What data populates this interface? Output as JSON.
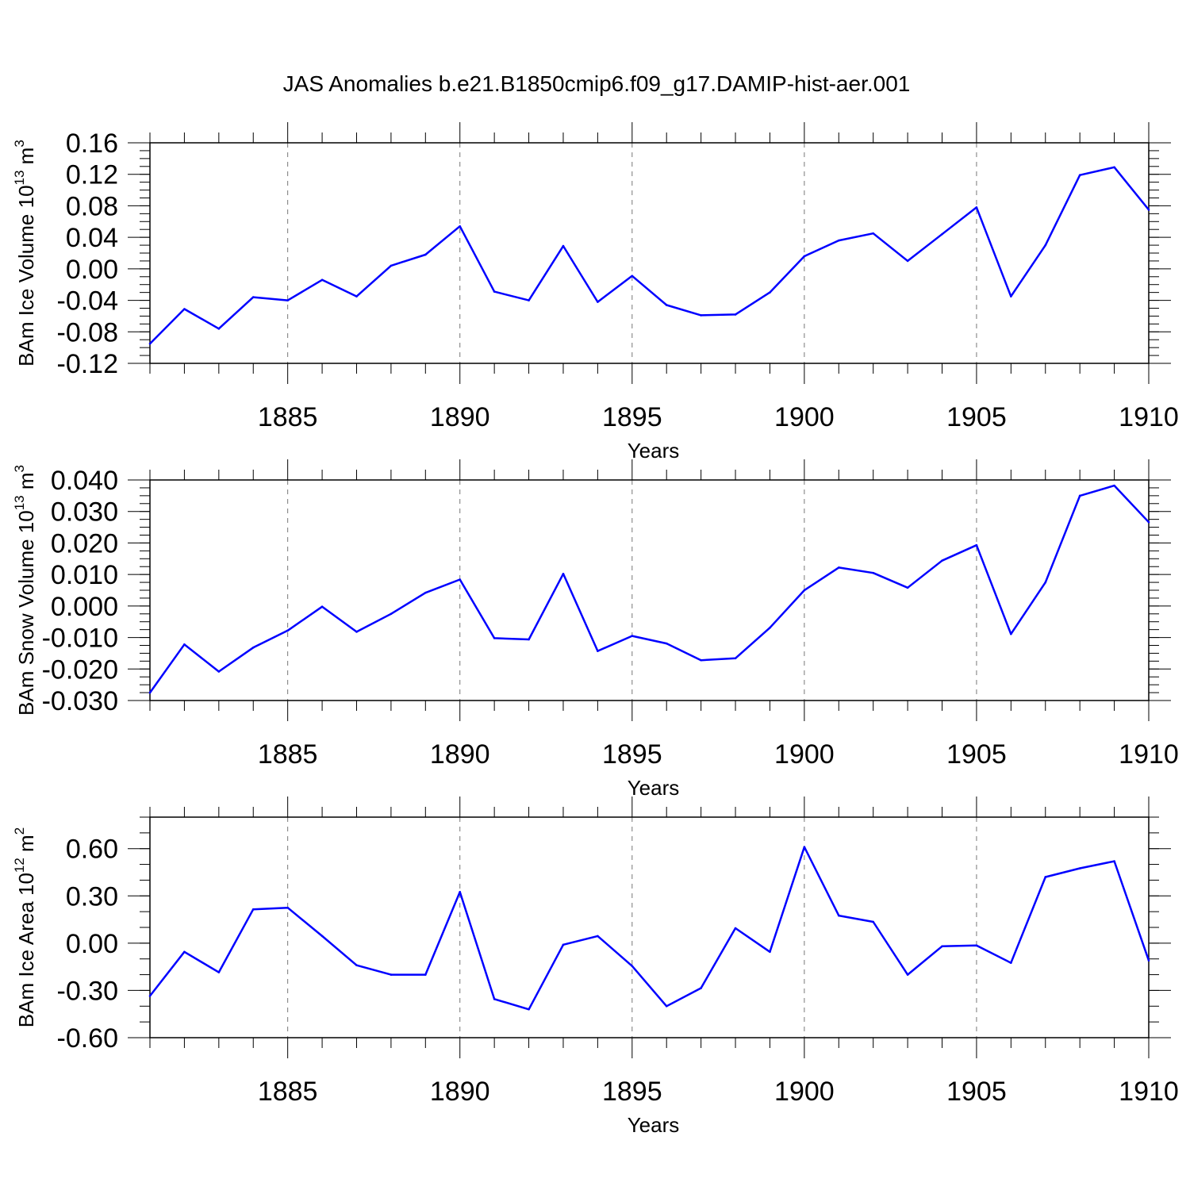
{
  "figure": {
    "title": "JAS Anomalies b.e21.B1850cmip6.f09_g17.DAMIP-hist-aer.001"
  },
  "chart_data": [
    {
      "type": "line",
      "ylabel": "BAm Ice Volume 10",
      "ylabel_exp": "13",
      "ylabel_unit": " m",
      "ylabel_unit_exp": "3",
      "xlabel": "Years",
      "xlim": [
        1881,
        1910
      ],
      "ylim": [
        -0.12,
        0.16
      ],
      "yticks": [
        "0.16",
        "0.12",
        "0.08",
        "0.04",
        "0.00",
        "-0.04",
        "-0.08",
        "-0.12"
      ],
      "ytick_values": [
        0.16,
        0.12,
        0.08,
        0.04,
        0.0,
        -0.04,
        -0.08,
        -0.12
      ],
      "xticks": [
        "1885",
        "1890",
        "1895",
        "1900",
        "1905",
        "1910"
      ],
      "xtick_values": [
        1885,
        1890,
        1895,
        1900,
        1905,
        1910
      ],
      "grid": "vertical dashed at labeled years",
      "line_color": "#0000ff",
      "x": [
        1881,
        1882,
        1883,
        1884,
        1885,
        1886,
        1887,
        1888,
        1889,
        1890,
        1891,
        1892,
        1893,
        1894,
        1895,
        1896,
        1897,
        1898,
        1899,
        1900,
        1901,
        1902,
        1903,
        1904,
        1905,
        1906,
        1907,
        1908,
        1909,
        1910
      ],
      "values": [
        -0.095,
        -0.051,
        -0.076,
        -0.036,
        -0.04,
        -0.014,
        -0.035,
        0.004,
        0.018,
        0.054,
        -0.029,
        -0.04,
        0.029,
        -0.042,
        -0.009,
        -0.046,
        -0.059,
        -0.058,
        -0.03,
        0.016,
        0.036,
        0.045,
        0.01,
        0.044,
        0.078,
        -0.035,
        0.03,
        0.119,
        0.129,
        0.075
      ]
    },
    {
      "type": "line",
      "ylabel": "BAm Snow Volume 10",
      "ylabel_exp": "13",
      "ylabel_unit": " m",
      "ylabel_unit_exp": "3",
      "xlabel": "Years",
      "xlim": [
        1881,
        1910
      ],
      "ylim": [
        -0.03,
        0.04
      ],
      "yticks": [
        "0.040",
        "0.030",
        "0.020",
        "0.010",
        "0.000",
        "-0.010",
        "-0.020",
        "-0.030"
      ],
      "ytick_values": [
        0.04,
        0.03,
        0.02,
        0.01,
        0.0,
        -0.01,
        -0.02,
        -0.03
      ],
      "xticks": [
        "1885",
        "1890",
        "1895",
        "1900",
        "1905",
        "1910"
      ],
      "xtick_values": [
        1885,
        1890,
        1895,
        1900,
        1905,
        1910
      ],
      "grid": "vertical dashed at labeled years",
      "line_color": "#0000ff",
      "x": [
        1881,
        1882,
        1883,
        1884,
        1885,
        1886,
        1887,
        1888,
        1889,
        1890,
        1891,
        1892,
        1893,
        1894,
        1895,
        1896,
        1897,
        1898,
        1899,
        1900,
        1901,
        1902,
        1903,
        1904,
        1905,
        1906,
        1907,
        1908,
        1909,
        1910
      ],
      "values": [
        -0.0275,
        -0.0122,
        -0.0208,
        -0.0132,
        -0.0078,
        -0.0002,
        -0.0082,
        -0.0025,
        0.0042,
        0.0084,
        -0.0102,
        -0.0106,
        0.0102,
        -0.0143,
        -0.0095,
        -0.0119,
        -0.0172,
        -0.0166,
        -0.0069,
        0.005,
        0.0122,
        0.0105,
        0.0058,
        0.0144,
        0.0193,
        -0.0089,
        0.0075,
        0.035,
        0.0382,
        0.0266
      ]
    },
    {
      "type": "line",
      "ylabel": "BAm Ice Area 10",
      "ylabel_exp": "12",
      "ylabel_unit": " m",
      "ylabel_unit_exp": "2",
      "xlabel": "Years",
      "xlim": [
        1881,
        1910
      ],
      "ylim": [
        -0.6,
        0.8
      ],
      "yticks": [
        "0.60",
        "0.30",
        "0.00",
        "-0.30",
        "-0.60"
      ],
      "ytick_values": [
        0.6,
        0.3,
        0.0,
        -0.3,
        -0.6
      ],
      "xticks": [
        "1885",
        "1890",
        "1895",
        "1900",
        "1905",
        "1910"
      ],
      "xtick_values": [
        1885,
        1890,
        1895,
        1900,
        1905,
        1910
      ],
      "grid": "vertical dashed at labeled years",
      "line_color": "#0000ff",
      "x": [
        1881,
        1882,
        1883,
        1884,
        1885,
        1886,
        1887,
        1888,
        1889,
        1890,
        1891,
        1892,
        1893,
        1894,
        1895,
        1896,
        1897,
        1898,
        1899,
        1900,
        1901,
        1902,
        1903,
        1904,
        1905,
        1906,
        1907,
        1908,
        1909,
        1910
      ],
      "values": [
        -0.335,
        -0.055,
        -0.185,
        0.215,
        0.225,
        0.045,
        -0.14,
        -0.2,
        -0.2,
        0.325,
        -0.355,
        -0.42,
        -0.01,
        0.045,
        -0.145,
        -0.4,
        -0.285,
        0.095,
        -0.055,
        0.61,
        0.175,
        0.135,
        -0.2,
        -0.02,
        -0.015,
        -0.125,
        0.42,
        0.475,
        0.52,
        -0.11
      ]
    }
  ]
}
